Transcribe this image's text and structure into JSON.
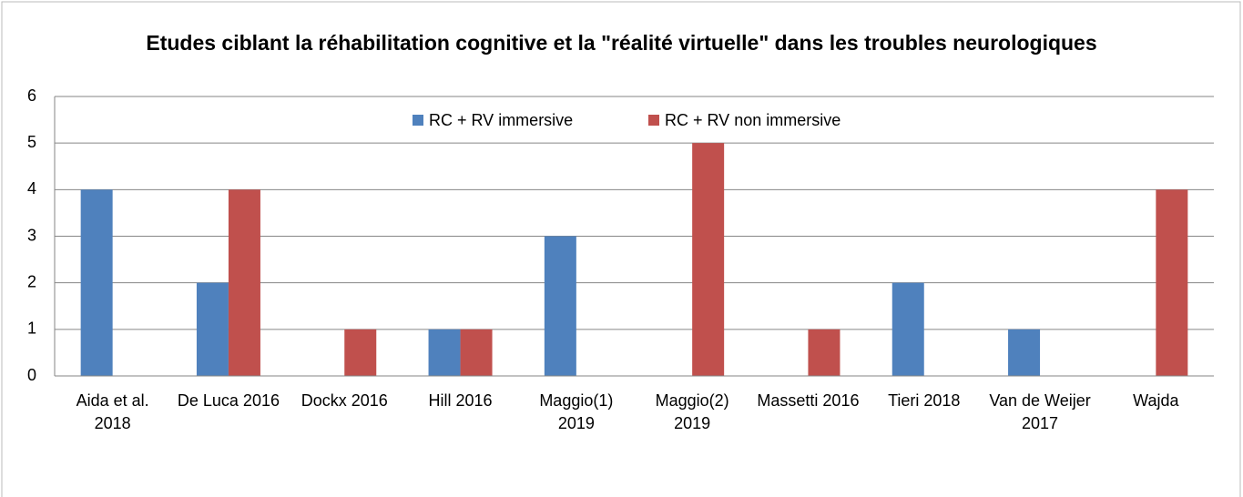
{
  "chart_data": {
    "type": "bar",
    "title": "Etudes ciblant la réhabilitation cognitive et la \"réalité virtuelle\" dans les troubles neurologiques",
    "categories": [
      "Aida et al. 2018",
      "De Luca 2016",
      "Dockx 2016",
      "Hill 2016",
      "Maggio(1) 2019",
      "Maggio(2) 2019",
      "Massetti 2016",
      "Tieri 2018",
      "Van de Weijer 2017",
      "Wajda"
    ],
    "series": [
      {
        "name": "RC + RV immersive",
        "color": "#4f81bd",
        "values": [
          4,
          2,
          0,
          1,
          3,
          0,
          0,
          2,
          1,
          0
        ]
      },
      {
        "name": "RC + RV non immersive",
        "color": "#c0504d",
        "values": [
          0,
          4,
          1,
          1,
          0,
          5,
          1,
          0,
          0,
          4
        ]
      }
    ],
    "ylim": [
      0,
      6
    ],
    "yticks": [
      0,
      1,
      2,
      3,
      4,
      5,
      6
    ],
    "grid": true,
    "legend": "top"
  }
}
